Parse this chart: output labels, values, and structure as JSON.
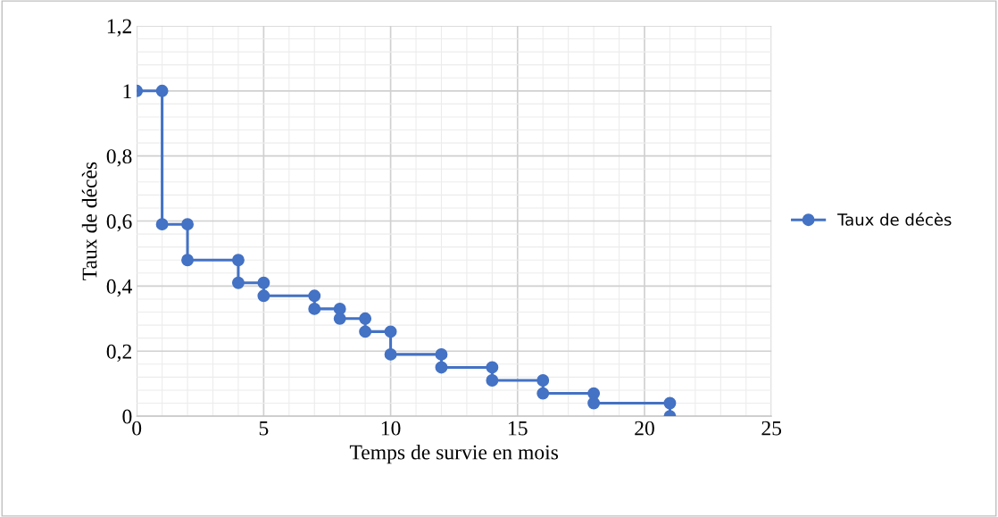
{
  "chart_data": {
    "type": "line",
    "xlabel": "Temps de survie en mois",
    "ylabel": "Taux de décès",
    "x": [
      0,
      1,
      1,
      2,
      2,
      4,
      4,
      5,
      5,
      7,
      7,
      8,
      8,
      9,
      9,
      10,
      10,
      12,
      12,
      14,
      14,
      16,
      16,
      18,
      18,
      21,
      21
    ],
    "series": [
      {
        "name": "Taux de décès",
        "color": "#4472c4",
        "values": [
          1,
          1,
          0.59,
          0.59,
          0.48,
          0.48,
          0.41,
          0.41,
          0.37,
          0.37,
          0.33,
          0.33,
          0.3,
          0.3,
          0.26,
          0.26,
          0.19,
          0.19,
          0.15,
          0.15,
          0.11,
          0.11,
          0.07,
          0.07,
          0.04,
          0.04,
          0
        ]
      }
    ],
    "xlim": [
      0,
      25
    ],
    "xticks": [
      0,
      5,
      10,
      15,
      20,
      25
    ],
    "ylim": [
      0,
      1.2
    ],
    "yticks": [
      0,
      {
        "value": 0.2,
        "label": "0,2"
      },
      {
        "value": 0.4,
        "label": "0,4"
      },
      {
        "value": 0.6,
        "label": "0,6"
      },
      {
        "value": 0.8,
        "label": "0,8"
      },
      1,
      {
        "value": 1.2,
        "label": "1,2"
      }
    ],
    "grid": true,
    "legend": "right",
    "marker": "circle",
    "line_style": "solid"
  }
}
